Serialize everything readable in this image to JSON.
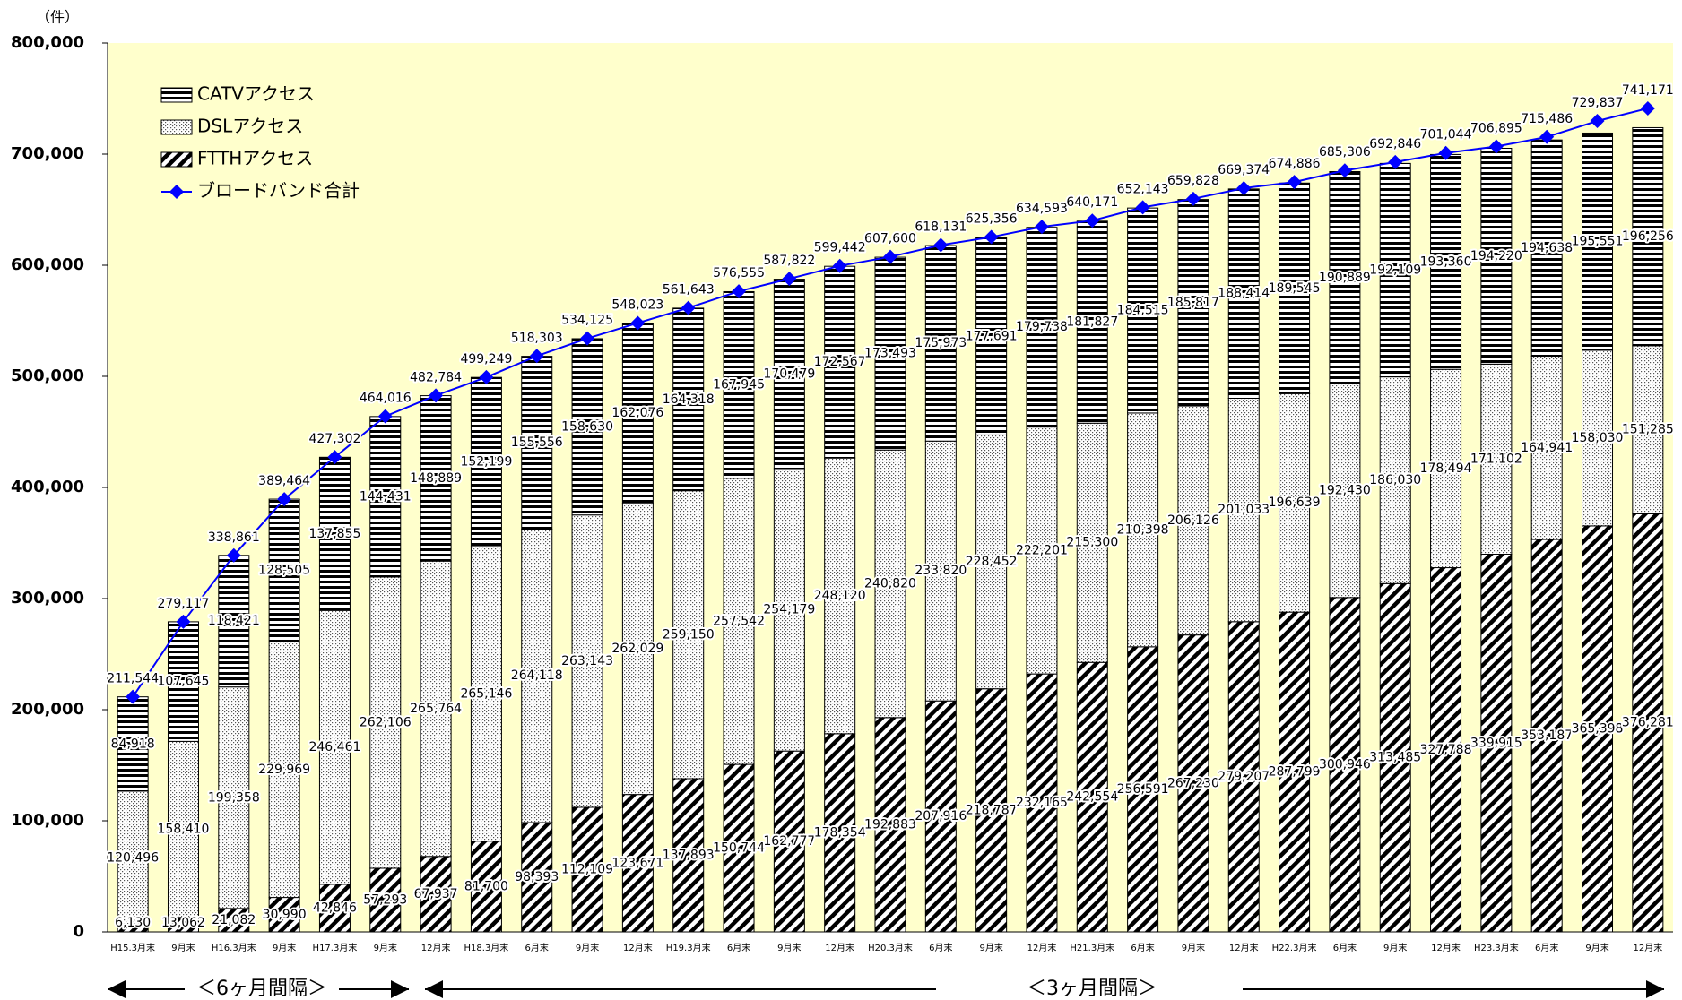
{
  "chart_data": {
    "type": "bar",
    "stacked": true,
    "y_label": "（件）",
    "annotations": [
      "＜6ヶ月間隔＞",
      "＜3ヶ月間隔＞"
    ],
    "categories": [
      "H15.3月末",
      "9月末",
      "H16.3月末",
      "9月末",
      "H17.3月末",
      "9月末",
      "12月末",
      "H18.3月末",
      "6月末",
      "9月末",
      "12月末",
      "H19.3月末",
      "6月末",
      "9月末",
      "12月末",
      "H20.3月末",
      "6月末",
      "9月末",
      "12月末",
      "H21.3月末",
      "6月末",
      "9月末",
      "12月末",
      "H22.3月末",
      "6月末",
      "9月末",
      "12月末",
      "H23.3月末",
      "6月末",
      "9月末",
      "12月末"
    ],
    "ylim": [
      0,
      800000
    ],
    "yticks": [
      0,
      {
        "value": 100000,
        "label": "100,000"
      },
      {
        "value": 200000,
        "label": "200,000"
      },
      {
        "value": 300000,
        "label": "300,000"
      },
      {
        "value": 400000,
        "label": "400,000"
      },
      {
        "value": 500000,
        "label": "500,000"
      },
      {
        "value": 600000,
        "label": "600,000"
      },
      {
        "value": 700000,
        "label": "700,000"
      },
      {
        "value": 800000,
        "label": "800,000"
      }
    ],
    "background": "#ffffcc",
    "series": [
      {
        "name": "CATVアクセス",
        "type": "bar",
        "pattern": "horizontal",
        "color": "#000000",
        "values": [
          84918,
          107645,
          118421,
          128505,
          137855,
          144431,
          148889,
          152199,
          155556,
          158630,
          162076,
          164318,
          167945,
          170479,
          172567,
          173493,
          175973,
          177691,
          179738,
          181827,
          184515,
          185817,
          188414,
          189545,
          190889,
          192109,
          193360,
          194220,
          194638,
          195551,
          196256
        ],
        "value_labels": [
          "84,918",
          "107,645",
          "118,421",
          "128,505",
          "137,855",
          "144,431",
          "148,889",
          "152,199",
          "155,556",
          "158,630",
          "162,076",
          "164,318",
          "167,945",
          "170,479",
          "172,567",
          "173,493",
          "175,973",
          "177,691",
          "179,738",
          "181,827",
          "184,515",
          "185,817",
          "188,414",
          "189,545",
          "190,889",
          "192,109",
          "193,360",
          "194,220",
          "194,638",
          "195,551",
          "196,256"
        ]
      },
      {
        "name": "DSLアクセス",
        "type": "bar",
        "pattern": "dots",
        "color": "#000000",
        "values": [
          120496,
          158410,
          199358,
          229969,
          246461,
          262106,
          265764,
          265146,
          264118,
          263143,
          262029,
          259150,
          257542,
          254179,
          248120,
          240820,
          233820,
          228452,
          222201,
          215300,
          210398,
          206126,
          201033,
          196639,
          192430,
          186030,
          178494,
          171102,
          164941,
          158030,
          151285
        ],
        "value_labels": [
          "120,496",
          "158,410",
          "199,358",
          "229,969",
          "246,461",
          "262,106",
          "265,764",
          "265,146",
          "264,118",
          "263,143",
          "262,029",
          "259,150",
          "257,542",
          "254,179",
          "248,120",
          "240,820",
          "233,820",
          "228,452",
          "222,201",
          "215,300",
          "210,398",
          "206,126",
          "201,033",
          "196,639",
          "192,430",
          "186,030",
          "178,494",
          "171,102",
          "164,941",
          "158,030",
          "151,285"
        ]
      },
      {
        "name": "FTTHアクセス",
        "type": "bar",
        "pattern": "diagonal",
        "color": "#000000",
        "values": [
          6130,
          13062,
          21082,
          30990,
          42846,
          57293,
          67937,
          81700,
          98393,
          112109,
          123671,
          137893,
          150744,
          162777,
          178354,
          192883,
          207916,
          218787,
          232165,
          242554,
          256591,
          267230,
          279207,
          287799,
          300946,
          313485,
          327788,
          339915,
          353187,
          365398,
          376281
        ],
        "value_labels": [
          "6,130",
          "13,062",
          "21,082",
          "30,990",
          "42,846",
          "57,293",
          "67,937",
          "81,700",
          "98,393",
          "112,109",
          "123,671",
          "137,893",
          "150,744",
          "162,777",
          "178,354",
          "192,883",
          "207,916",
          "218,787",
          "232,165",
          "242,554",
          "256,591",
          "267,230",
          "279,207",
          "287,799",
          "300,946",
          "313,485",
          "327,788",
          "339,915",
          "353,187",
          "365,398",
          "376,281"
        ]
      },
      {
        "name": "ブロードバンド合計",
        "type": "line",
        "color": "#0000ff",
        "values": [
          211544,
          279117,
          338861,
          389464,
          427302,
          464016,
          482784,
          499249,
          518303,
          534125,
          548023,
          561643,
          576555,
          587822,
          599442,
          607600,
          618131,
          625356,
          634593,
          640171,
          652143,
          659828,
          669374,
          674886,
          685306,
          692846,
          701044,
          706895,
          715486,
          729837,
          741171
        ],
        "value_labels": [
          "211,544",
          "279,117",
          "338,861",
          "389,464",
          "427,302",
          "464,016",
          "482,784",
          "499,249",
          "518,303",
          "534,125",
          "548,023",
          "561,643",
          "576,555",
          "587,822",
          "599,442",
          "607,600",
          "618,131",
          "625,356",
          "634,593",
          "640,171",
          "652,143",
          "659,828",
          "669,374",
          "674,886",
          "685,306",
          "692,846",
          "701,044",
          "706,895",
          "715,486",
          "729,837",
          "741,171"
        ]
      }
    ]
  }
}
